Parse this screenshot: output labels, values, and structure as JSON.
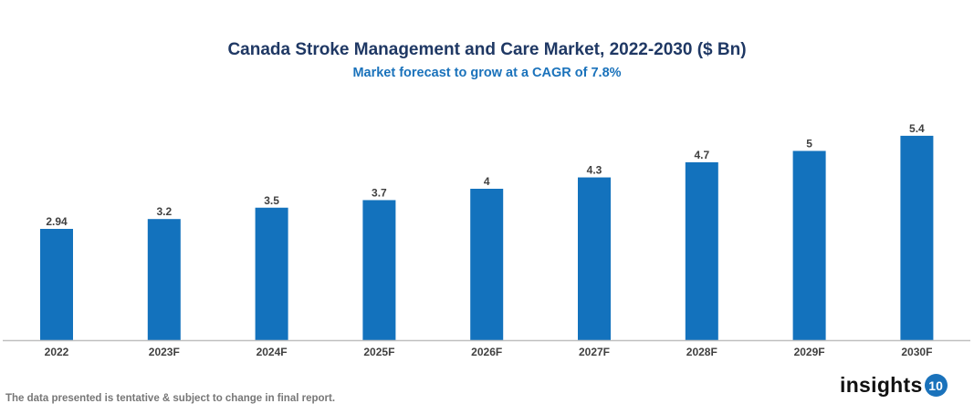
{
  "chart_data": {
    "type": "bar",
    "title": "Canada Stroke Management and Care Market, 2022-2030 ($ Bn)",
    "subtitle": "Market forecast to grow at a CAGR of 7.8%",
    "categories": [
      "2022",
      "2023F",
      "2024F",
      "2025F",
      "2026F",
      "2027F",
      "2028F",
      "2029F",
      "2030F"
    ],
    "values": [
      2.94,
      3.2,
      3.5,
      3.7,
      4,
      4.3,
      4.7,
      5,
      5.4
    ],
    "value_labels": [
      "2.94",
      "3.2",
      "3.5",
      "3.7",
      "4",
      "4.3",
      "4.7",
      "5",
      "5.4"
    ],
    "xlabel": "",
    "ylabel": "",
    "ylim": [
      0,
      5.4
    ],
    "grid": false,
    "legend": "none",
    "bar_color": "#1372bd"
  },
  "footnote": "The data presented is tentative & subject to change in final report.",
  "logo": {
    "text": "insights",
    "badge": "10"
  }
}
